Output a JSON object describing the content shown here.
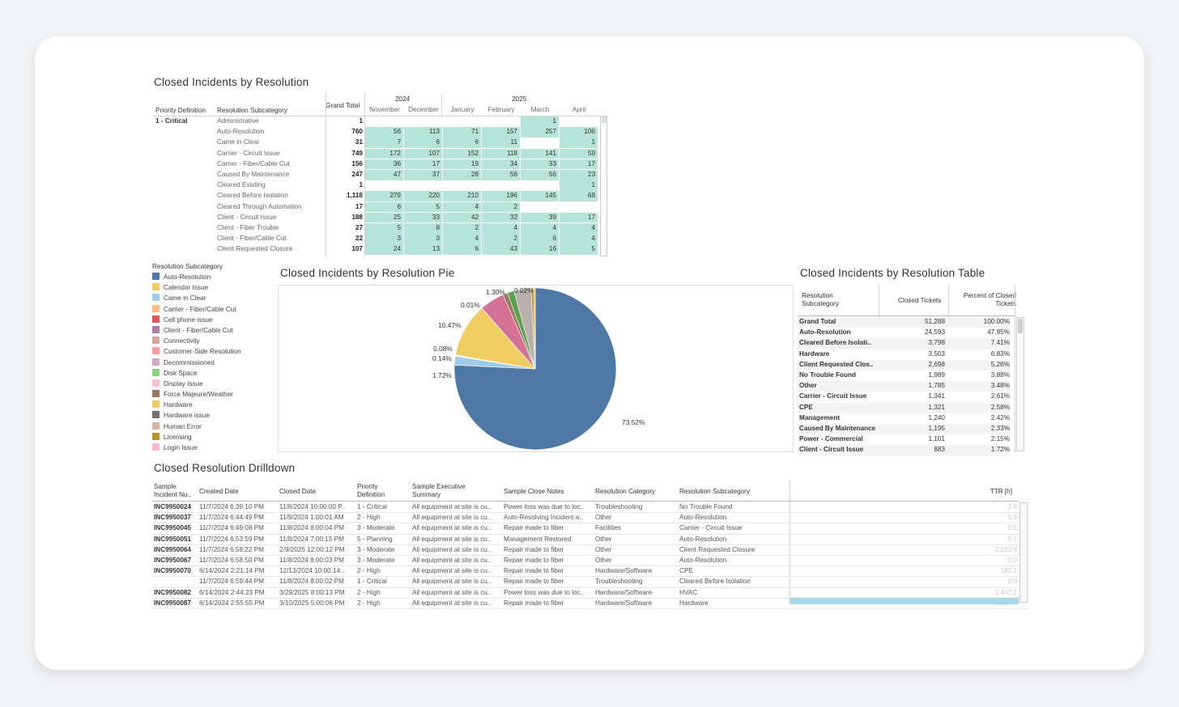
{
  "pivot": {
    "title": "Closed Incidents by Resolution",
    "headers": {
      "priority": "Priority Definition",
      "subcategory": "Resolution Subcategory",
      "grand_total": "Grand Total"
    },
    "years": [
      {
        "label": "2024"
      },
      {
        "label": "2025"
      }
    ],
    "months": [
      "November",
      "December",
      "January",
      "February",
      "March",
      "April"
    ],
    "priority": "1 - Critical",
    "rows": [
      {
        "sub": "Administrative",
        "total": "1",
        "m": [
          "",
          "",
          "",
          "",
          "1",
          ""
        ]
      },
      {
        "sub": "Auto-Resolution",
        "total": "760",
        "m": [
          "56",
          "113",
          "71",
          "157",
          "257",
          "106"
        ]
      },
      {
        "sub": "Came in Clear",
        "total": "31",
        "m": [
          "7",
          "6",
          "6",
          "11",
          "",
          "1"
        ]
      },
      {
        "sub": "Carrier - Circuit Issue",
        "total": "749",
        "m": [
          "172",
          "107",
          "152",
          "118",
          "141",
          "59"
        ]
      },
      {
        "sub": "Carrier - Fiber/Cable Cut",
        "total": "156",
        "m": [
          "36",
          "17",
          "19",
          "34",
          "33",
          "17"
        ]
      },
      {
        "sub": "Caused By Maintenance",
        "total": "247",
        "m": [
          "47",
          "37",
          "28",
          "56",
          "56",
          "23"
        ]
      },
      {
        "sub": "Cleared Existing",
        "total": "1",
        "m": [
          "",
          "",
          "",
          "",
          "",
          "1"
        ]
      },
      {
        "sub": "Cleared Before Isolation",
        "total": "1,118",
        "m": [
          "279",
          "220",
          "210",
          "196",
          "145",
          "68"
        ]
      },
      {
        "sub": "Cleared Through Automation",
        "total": "17",
        "m": [
          "6",
          "5",
          "4",
          "2",
          "",
          ""
        ]
      },
      {
        "sub": "Client - Circuit Issue",
        "total": "188",
        "m": [
          "25",
          "33",
          "42",
          "32",
          "39",
          "17"
        ]
      },
      {
        "sub": "Client - Fiber Trouble",
        "total": "27",
        "m": [
          "5",
          "8",
          "2",
          "4",
          "4",
          "4"
        ]
      },
      {
        "sub": "Client - Fiber/Cable Cut",
        "total": "22",
        "m": [
          "3",
          "3",
          "4",
          "2",
          "6",
          "4"
        ]
      },
      {
        "sub": "Client Requested Closure",
        "total": "107",
        "m": [
          "24",
          "13",
          "6",
          "43",
          "16",
          "5"
        ]
      }
    ]
  },
  "legend": {
    "title": "Resolution Subcategory",
    "items": [
      {
        "label": "Auto-Resolution",
        "color": "#4e79a7"
      },
      {
        "label": "Calendar Issue",
        "color": "#f1ce63"
      },
      {
        "label": "Came in Clear",
        "color": "#a0cbe8"
      },
      {
        "label": "Carrier - Fiber/Cable Cut",
        "color": "#ffbe7d"
      },
      {
        "label": "Cell phone issue",
        "color": "#e15759"
      },
      {
        "label": "Client - Fiber/Cable Cut",
        "color": "#b07aa1"
      },
      {
        "label": "Connectivity",
        "color": "#d4a6a0"
      },
      {
        "label": "Customer-Side Resolution",
        "color": "#ff9d9a"
      },
      {
        "label": "Decommissioned",
        "color": "#d4a6c8"
      },
      {
        "label": "Disk Space",
        "color": "#8cd17d"
      },
      {
        "label": "Display Issue",
        "color": "#fabfd2"
      },
      {
        "label": "Force Majeure/Weather",
        "color": "#9d7660"
      },
      {
        "label": "Hardware",
        "color": "#f1ce63"
      },
      {
        "label": "Hardware issue",
        "color": "#79706e"
      },
      {
        "label": "Human Error",
        "color": "#d7b5a6"
      },
      {
        "label": "Licensing",
        "color": "#b6992d"
      },
      {
        "label": "Login Issue",
        "color": "#f5b8ce"
      }
    ]
  },
  "pie": {
    "title": "Closed Incidents by Resolution Pie",
    "labels": [
      "73.52%",
      "1.72%",
      "0.14%",
      "0.08%",
      "10.47%",
      "0.01%",
      "1.30%",
      "0.02%"
    ]
  },
  "chart_data": {
    "type": "pie",
    "title": "Closed Incidents by Resolution Pie",
    "slices": [
      {
        "label": "Auto-Resolution",
        "value": 73.52,
        "color": "#4e79a7"
      },
      {
        "label": "Came in Clear",
        "value": 1.72,
        "color": "#a0cbe8"
      },
      {
        "label": "Carrier - Fiber/Cable Cut",
        "value": 0.14,
        "color": "#ffbe7d"
      },
      {
        "label": "Customer-Side Resolution",
        "value": 0.08,
        "color": "#ff9d9a"
      },
      {
        "label": "Hardware",
        "value": 10.47,
        "color": "#f1ce63"
      },
      {
        "label": "Cell phone issue",
        "value": 0.01,
        "color": "#e15759"
      },
      {
        "label": "Client - Fiber/Cable Cut",
        "value": 4.8,
        "color": "#d37295"
      },
      {
        "label": "Force Majeure/Weather",
        "value": 0.9,
        "color": "#9d7660"
      },
      {
        "label": "Disk Space",
        "value": 1.3,
        "color": "#59a14f"
      },
      {
        "label": "Human Error",
        "value": 3.3,
        "color": "#bab0ac"
      },
      {
        "label": "Licensing",
        "value": 0.5,
        "color": "#b6992d"
      },
      {
        "label": "Login Issue",
        "value": 0.3,
        "color": "#f28e2b"
      },
      {
        "label": "Decommissioned",
        "value": 0.02,
        "color": "#d4a6c8"
      }
    ]
  },
  "restable": {
    "title": "Closed Incidents by Resolution Table",
    "headers": {
      "sub": "Resolution Subcategory",
      "closed": "Closed Tickets",
      "pct": "Percent of Closed Tickets"
    },
    "rows": [
      {
        "name": "Grand Total",
        "closed": "51,288",
        "pct": "100.00%"
      },
      {
        "name": "Auto-Resolution",
        "closed": "24,593",
        "pct": "47.95%"
      },
      {
        "name": "Cleared Before Isolati..",
        "closed": "3,798",
        "pct": "7.41%"
      },
      {
        "name": "Hardware",
        "closed": "3,503",
        "pct": "6.83%"
      },
      {
        "name": "Client Requested Clos..",
        "closed": "2,698",
        "pct": "5.26%"
      },
      {
        "name": "No Trouble Found",
        "closed": "1,989",
        "pct": "3.88%"
      },
      {
        "name": "Other",
        "closed": "1,785",
        "pct": "3.48%"
      },
      {
        "name": "Carrier - Circuit Issue",
        "closed": "1,341",
        "pct": "2.61%"
      },
      {
        "name": "CPE",
        "closed": "1,321",
        "pct": "2.58%"
      },
      {
        "name": "Management",
        "closed": "1,240",
        "pct": "2.42%"
      },
      {
        "name": "Caused By Maintenance",
        "closed": "1,195",
        "pct": "2.33%"
      },
      {
        "name": "Power - Commercial",
        "closed": "1,101",
        "pct": "2.15%"
      },
      {
        "name": "Client - Circuit Issue",
        "closed": "883",
        "pct": "1.72%"
      }
    ]
  },
  "drill": {
    "title": "Closed Resolution Drilldown",
    "headers": {
      "id": "Sample Incident Nu..",
      "created": "Created Date",
      "closed": "Closed Date",
      "priority": "Priority Definition",
      "summary": "Sample Executive Summary",
      "notes": "Sample Close Notes",
      "cat": "Resolution Category",
      "sub": "Resolution Subcategory",
      "ttr": "TTR [h]"
    },
    "rows": [
      {
        "id": "INC9950024",
        "created": "11/7/2024 6:39:10 PM",
        "closed": "11/8/2024 10:00:00 P..",
        "priority": "1 - Critical",
        "summary": "All equipment at site is cu..",
        "notes": "Power loss was due to loc..",
        "cat": "Troubleshooting",
        "sub": "No Trouble Found",
        "ttr": "2.8"
      },
      {
        "id": "INC9950037",
        "created": "11/7/2024 6:44:49 PM",
        "closed": "11/9/2024 1:00:01 AM",
        "priority": "2 - High",
        "summary": "All equipment at site is cu..",
        "notes": "Auto-Resolving Incident a..",
        "cat": "Other",
        "sub": "Auto-Resolution",
        "ttr": "6.9"
      },
      {
        "id": "INC9950045",
        "created": "11/7/2024 6:49:08 PM",
        "closed": "11/8/2024 8:00:04 PM",
        "priority": "3 - Moderate",
        "summary": "All equipment at site is cu..",
        "notes": "Repair made to fiber",
        "cat": "Facilities",
        "sub": "Carrier - Circuit Issue",
        "ttr": "0.5"
      },
      {
        "id": "INC9950051",
        "created": "11/7/2024 6:53:59 PM",
        "closed": "11/8/2024 7:00:15 PM",
        "priority": "5 - Planning",
        "summary": "All equipment at site is cu..",
        "notes": "Management Restored",
        "cat": "Other",
        "sub": "Auto-Resolution",
        "ttr": "0.1"
      },
      {
        "id": "INC9950064",
        "created": "11/7/2024 6:58:22 PM",
        "closed": "2/9/2025 12:00:12 PM",
        "priority": "3 - Moderate",
        "summary": "All equipment at site is cu..",
        "notes": "Repair made to fiber",
        "cat": "Other",
        "sub": "Client Requested Closure",
        "ttr": "2,223.9"
      },
      {
        "id": "INC9950067",
        "created": "11/7/2024 6:58:50 PM",
        "closed": "11/8/2024 8:00:03 PM",
        "priority": "3 - Moderate",
        "summary": "All equipment at site is cu..",
        "notes": "Repair made to fiber",
        "cat": "Other",
        "sub": "Auto-Resolution",
        "ttr": "0.0"
      },
      {
        "id": "INC9950070",
        "created": "6/14/2024 2:21:14 PM",
        "closed": "12/13/2024 10:00:14 ..",
        "priority": "2 - High",
        "summary": "All equipment at site is cu..",
        "notes": "Repair made to fiber",
        "cat": "Hardware/Software",
        "sub": "CPE",
        "ttr": "182.1"
      },
      {
        "id": "",
        "created": "11/7/2024 6:59:44 PM",
        "closed": "11/8/2024 8:00:02 PM",
        "priority": "1 - Critical",
        "summary": "All equipment at site is cu..",
        "notes": "Repair made to fiber",
        "cat": "Troubleshooting",
        "sub": "Cleared Before Isolation",
        "ttr": "0.0"
      },
      {
        "id": "INC9950082",
        "created": "6/14/2024 2:44:23 PM",
        "closed": "3/29/2025 8:00:13 PM",
        "priority": "2 - High",
        "summary": "All equipment at site is cu..",
        "notes": "Power loss was due to loc..",
        "cat": "Hardware/Software",
        "sub": "HVAC",
        "ttr": "3,467.1"
      },
      {
        "id": "INC9950087",
        "created": "6/14/2024 2:55:55 PM",
        "closed": "3/10/2025 5:00:06 PM",
        "priority": "2 - High",
        "summary": "All equipment at site is cu..",
        "notes": "Repair made to fiber",
        "cat": "Hardware/Software",
        "sub": "Hardware",
        "ttr": "5,950.0"
      }
    ]
  }
}
